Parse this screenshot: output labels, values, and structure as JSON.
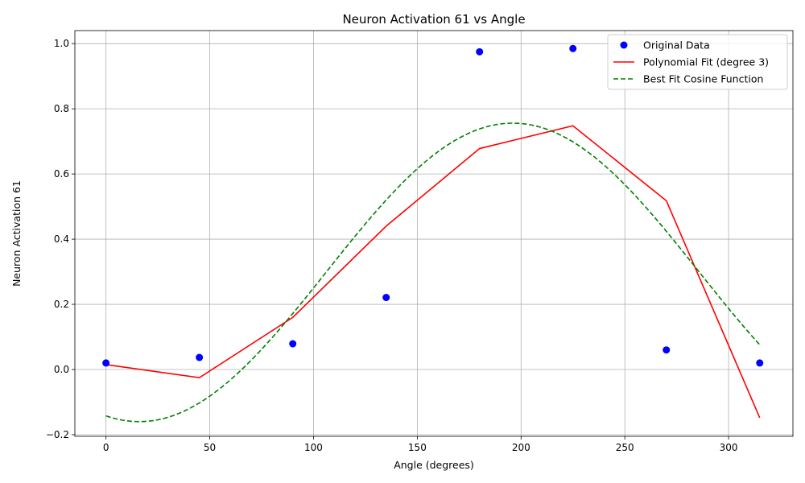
{
  "chart_data": {
    "type": "scatter",
    "title": "Neuron Activation 61 vs Angle",
    "xlabel": "Angle (degrees)",
    "ylabel": "Neuron Activation 61",
    "xlim": [
      -15,
      331
    ],
    "ylim": [
      -0.205,
      1.04
    ],
    "xticks": [
      0,
      50,
      100,
      150,
      200,
      250,
      300
    ],
    "yticks": [
      -0.2,
      0.0,
      0.2,
      0.4,
      0.6,
      0.8,
      1.0
    ],
    "xtick_labels": [
      "0",
      "50",
      "100",
      "150",
      "200",
      "250",
      "300"
    ],
    "ytick_labels": [
      "−0.2",
      "0.0",
      "0.2",
      "0.4",
      "0.6",
      "0.8",
      "1.0"
    ],
    "grid": true,
    "legend_position": "top-right",
    "series": [
      {
        "name": "Original Data",
        "kind": "scatter",
        "color": "#0000ff",
        "x": [
          0,
          45,
          90,
          135,
          180,
          225,
          270,
          315
        ],
        "y": [
          0.02,
          0.037,
          0.079,
          0.221,
          0.975,
          0.985,
          0.06,
          0.02
        ]
      },
      {
        "name": "Polynomial Fit (degree 3)",
        "kind": "line",
        "color": "#ff0000",
        "dash": "solid",
        "x": [
          0,
          45,
          90,
          135,
          180,
          225,
          270,
          315
        ],
        "y": [
          0.015,
          -0.025,
          0.16,
          0.44,
          0.678,
          0.748,
          0.518,
          -0.148
        ]
      },
      {
        "name": "Best Fit Cosine Function",
        "kind": "line",
        "color": "#008000",
        "dash": "dashed",
        "amplitude": 0.458,
        "offset": 0.298,
        "peak_deg": 196,
        "x_range": [
          0,
          315
        ]
      }
    ]
  }
}
